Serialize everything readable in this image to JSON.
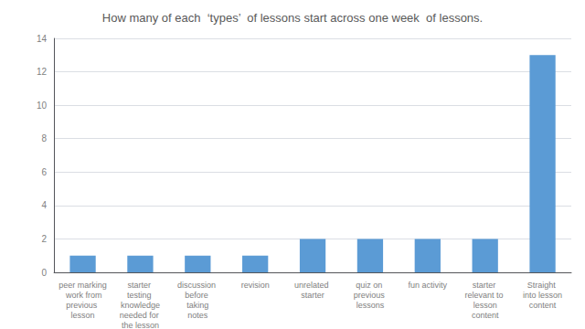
{
  "chart_data": {
    "type": "bar",
    "title": "How many of each  ‘types’  of lessons start across one week  of lessons.",
    "categories": [
      "peer marking work from\nprevious lesson",
      "starter testing knowledge\nneeded for the lesson",
      "discussion before taking\nnotes",
      "revision",
      "unrelated starter",
      "quiz on previous lessons",
      "fun activity",
      "starter relevant to lesson\ncontent",
      "Straight into lesson\ncontent"
    ],
    "values": [
      1,
      1,
      1,
      1,
      2,
      2,
      2,
      2,
      13
    ],
    "color": "#5b9bd5",
    "ylim": [
      0,
      14
    ],
    "yticks": [
      0,
      2,
      4,
      6,
      8,
      10,
      12,
      14
    ],
    "grid": true
  }
}
